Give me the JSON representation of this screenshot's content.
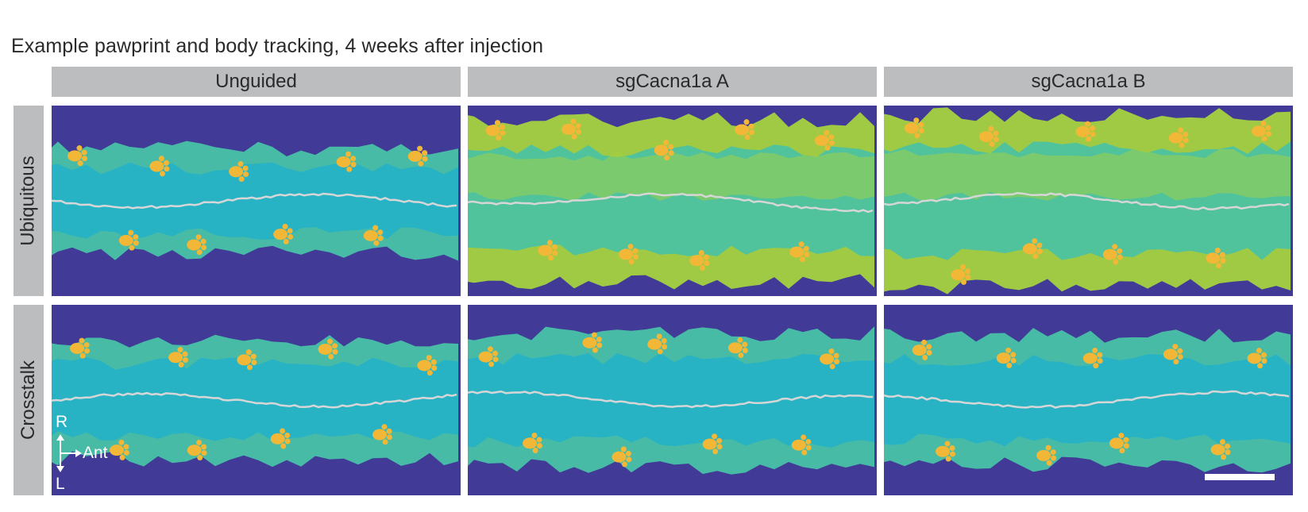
{
  "figure": {
    "title": "Example pawprint and body tracking, 4 weeks after injection",
    "columns": [
      "Unguided",
      "sgCacna1a A",
      "sgCacna1a B"
    ],
    "rows": [
      "Ubiquitous",
      "Crosstalk"
    ],
    "orientation": {
      "right": "R",
      "left": "L",
      "anterior": "Ant"
    }
  },
  "colors": {
    "background": "#423a97",
    "header_fill": "#bcbdbf",
    "body_cool": "#25b3c9",
    "body_mid": "#48c2a6",
    "body_warm": "#a6d23f",
    "paw": "#f2b736",
    "trace": "#d6d6d6"
  },
  "panels": [
    {
      "row": "Ubiquitous",
      "column": "Unguided",
      "style": "cool",
      "spread": 0.55,
      "tilt": 0
    },
    {
      "row": "Ubiquitous",
      "column": "sgCacna1a A",
      "style": "warm",
      "spread": 0.85,
      "tilt": 0.1
    },
    {
      "row": "Ubiquitous",
      "column": "sgCacna1a B",
      "style": "warm",
      "spread": 0.9,
      "tilt": 0.05
    },
    {
      "row": "Crosstalk",
      "column": "Unguided",
      "style": "cool",
      "spread": 0.62,
      "tilt": 0
    },
    {
      "row": "Crosstalk",
      "column": "sgCacna1a A",
      "style": "cool",
      "spread": 0.7,
      "tilt": 0.05
    },
    {
      "row": "Crosstalk",
      "column": "sgCacna1a B",
      "style": "cool",
      "spread": 0.68,
      "tilt": -0.05
    }
  ]
}
